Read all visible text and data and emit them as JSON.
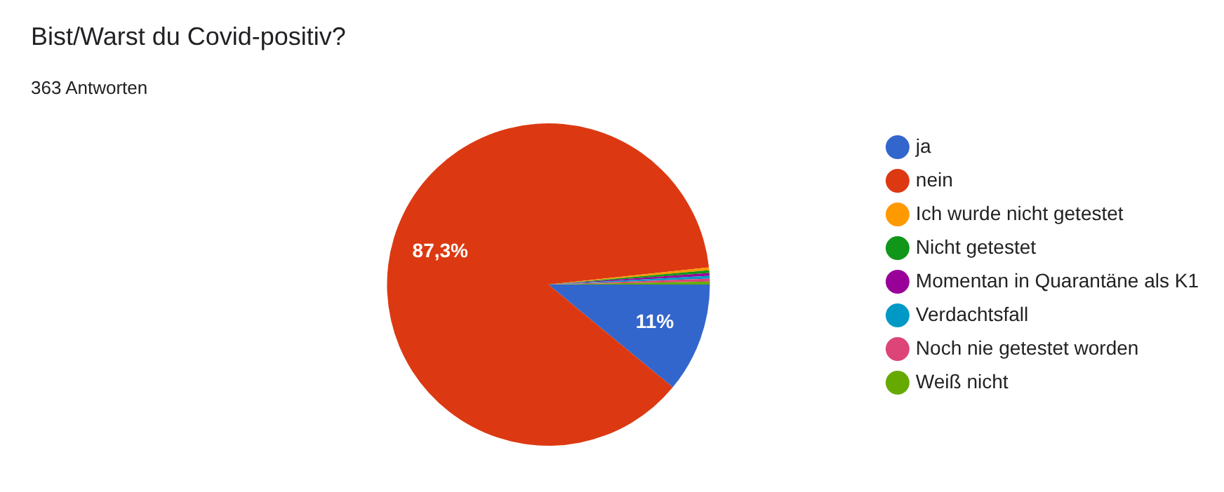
{
  "chart_data": {
    "type": "pie",
    "title": "Bist/Warst du Covid-positiv?",
    "subtitle": "363 Antworten",
    "categories": [
      "ja",
      "nein",
      "Ich wurde nicht getestet",
      "Nicht getestet",
      "Momentan in Quarantäne als K1",
      "Verdachtsfall",
      "Noch nie getestet worden",
      "Weiß nicht"
    ],
    "values": [
      11,
      87.3,
      0.28,
      0.28,
      0.28,
      0.28,
      0.29,
      0.29
    ],
    "value_labels": [
      "11%",
      "87,3%",
      null,
      null,
      null,
      null,
      null,
      null
    ],
    "colors": [
      "#3366cc",
      "#dc3912",
      "#ff9900",
      "#109618",
      "#990099",
      "#0099c6",
      "#dd4477",
      "#66aa00"
    ],
    "legend": "right"
  }
}
